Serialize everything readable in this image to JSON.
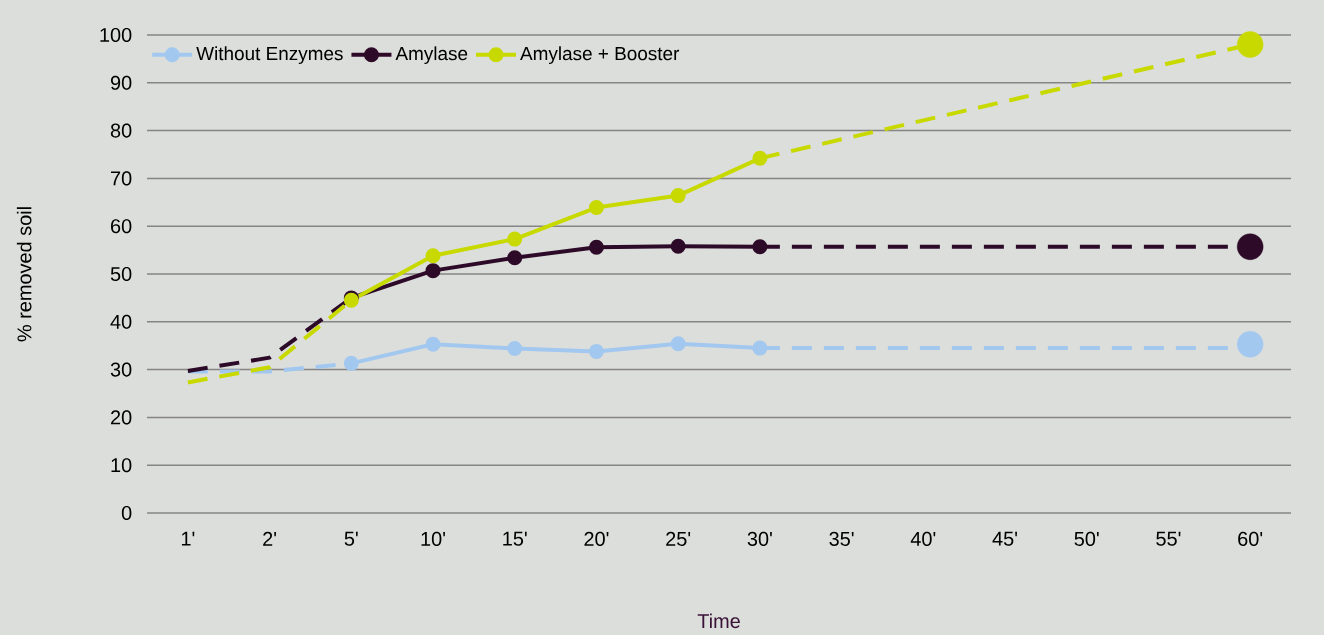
{
  "chart_data": {
    "type": "line",
    "xlabel": "Time",
    "ylabel": "% removed soil",
    "categories": [
      "1'",
      "2'",
      "5'",
      "10'",
      "15'",
      "20'",
      "25'",
      "30'",
      "35'",
      "40'",
      "45'",
      "50'",
      "55'",
      "60'"
    ],
    "ylim": [
      0,
      100
    ],
    "yticks": [
      0,
      10,
      20,
      30,
      40,
      50,
      60,
      70,
      80,
      90,
      100
    ],
    "grid": "y",
    "legend": "top left",
    "series": [
      {
        "name": "Without Enzymes",
        "color": "#a3c8f0",
        "marker": "circle",
        "line_style": "solid",
        "values": [
          null,
          null,
          31.3,
          35.3,
          34.4,
          33.8,
          35.4,
          34.5,
          null,
          null,
          null,
          null,
          null,
          null
        ]
      },
      {
        "name": "Amylase",
        "color": "#2d0a28",
        "marker": "circle",
        "line_style": "solid",
        "values": [
          null,
          null,
          45,
          50.7,
          53.4,
          55.6,
          55.8,
          55.7,
          null,
          null,
          null,
          null,
          null,
          null
        ]
      },
      {
        "name": "Amylase + Booster",
        "color": "#c8d900",
        "marker": "circle",
        "line_style": "solid",
        "values": [
          null,
          null,
          44.5,
          53.8,
          57.3,
          63.9,
          66.4,
          74.2,
          null,
          null,
          null,
          null,
          null,
          null
        ]
      },
      {
        "color": "#a3c8f0",
        "marker": "none",
        "line_style": "dashed",
        "values": [
          29.6,
          29.6,
          31.3,
          null,
          null,
          null,
          null,
          null,
          null,
          null,
          null,
          null,
          null,
          null
        ]
      },
      {
        "color": "#2d0a28",
        "marker": "none",
        "line_style": "dashed",
        "values": [
          29.7,
          32.5,
          45,
          null,
          null,
          null,
          null,
          null,
          null,
          null,
          null,
          null,
          null,
          null
        ]
      },
      {
        "color": "#c8d900",
        "marker": "none",
        "line_style": "dashed",
        "values": [
          27.3,
          30.5,
          44.5,
          null,
          null,
          null,
          null,
          null,
          null,
          null,
          null,
          null,
          null,
          null
        ]
      },
      {
        "color": "#a3c8f0",
        "line_style": "dashed",
        "values": [
          null,
          null,
          null,
          null,
          null,
          null,
          null,
          34.5,
          null,
          null,
          null,
          null,
          null,
          34.5
        ]
      },
      {
        "color": "#2d0a28",
        "line_style": "dashed",
        "values": [
          null,
          null,
          null,
          null,
          null,
          null,
          null,
          55.7,
          null,
          null,
          null,
          null,
          null,
          55.7
        ]
      },
      {
        "color": "#c8d900",
        "line_style": "dashed",
        "values": [
          null,
          null,
          null,
          null,
          null,
          null,
          null,
          74.2,
          null,
          null,
          null,
          null,
          null,
          98
        ]
      },
      {
        "type": "scatter",
        "color": "#a3c8f0",
        "marker": "circle",
        "values": [
          null,
          null,
          null,
          null,
          null,
          null,
          null,
          null,
          null,
          null,
          null,
          null,
          null,
          35.3
        ]
      },
      {
        "type": "scatter",
        "color": "#2d0a28",
        "marker": "circle",
        "values": [
          null,
          null,
          null,
          null,
          null,
          null,
          null,
          null,
          null,
          null,
          null,
          null,
          null,
          55.7
        ]
      },
      {
        "type": "scatter",
        "color": "#c8d900",
        "marker": "circle",
        "values": [
          null,
          null,
          null,
          null,
          null,
          null,
          null,
          null,
          null,
          null,
          null,
          null,
          null,
          98
        ]
      }
    ]
  }
}
